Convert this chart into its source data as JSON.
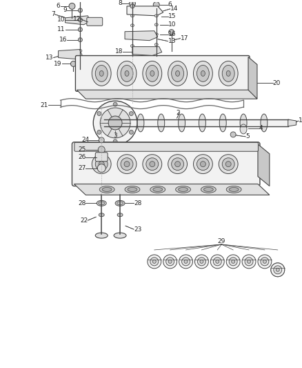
{
  "bg_color": "#ffffff",
  "fig_width": 4.38,
  "fig_height": 5.33,
  "dpi": 100,
  "lc": "#444444",
  "tc": "#222222",
  "fc_light": "#f2f2f2",
  "fc_mid": "#e0e0e0",
  "fc_dark": "#c8c8c8",
  "fc_darker": "#b0b0b0"
}
